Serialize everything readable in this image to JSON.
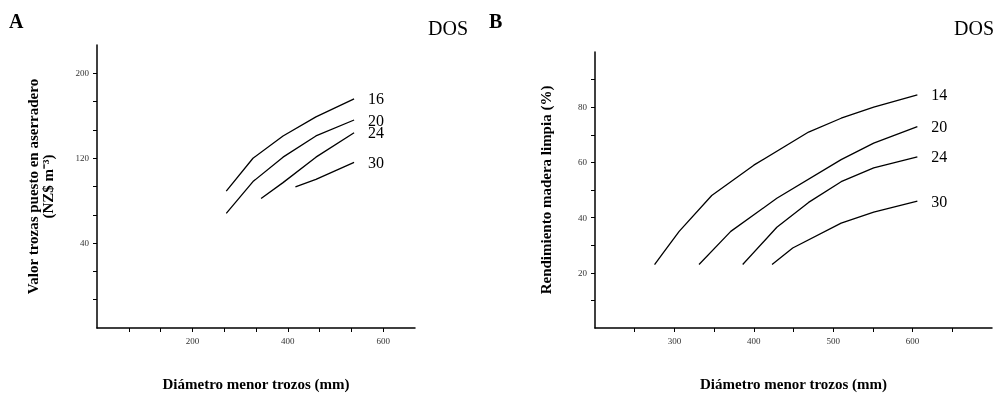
{
  "chart_data": [
    {
      "type": "line",
      "title": "A",
      "legend_title": "DOS",
      "xlabel": "Diámetro menor trozos (mm)",
      "ylabel": "Valor trozas puesto en aserradero\n(NZ$ m⁻³)",
      "marker": "none",
      "line_style": "solid",
      "grid": false,
      "xlim": [
        0,
        666.7
      ],
      "xticks": [
        {
          "value": 66.7,
          "label": null
        },
        {
          "value": 133.3,
          "label": null
        },
        200,
        {
          "value": 266.7,
          "label": null
        },
        {
          "value": 333.3,
          "label": null
        },
        400,
        {
          "value": 466.7,
          "label": null
        },
        {
          "value": 533.3,
          "label": null
        },
        600
      ],
      "ylim": [
        -40,
        226.7
      ],
      "yticks": [
        {
          "value": -13.3,
          "label": null
        },
        {
          "value": 13.3,
          "label": null
        },
        40,
        {
          "value": 66.7,
          "label": null
        },
        {
          "value": 93.3,
          "label": null
        },
        120,
        {
          "value": 146.7,
          "label": null
        },
        {
          "value": 173.3,
          "label": null
        },
        200
      ],
      "series": [
        {
          "name": "16",
          "color": "#000000",
          "x": [
            271,
            327,
            390,
            459,
            539
          ],
          "values": [
            89,
            120,
            141,
            159,
            176
          ]
        },
        {
          "name": "20",
          "color": "#000000",
          "x": [
            271,
            327,
            390,
            459,
            539
          ],
          "values": [
            68,
            98,
            121,
            141,
            156
          ]
        },
        {
          "name": "24",
          "color": "#000000",
          "x": [
            344,
            390,
            459,
            539
          ],
          "values": [
            82,
            97,
            121,
            144
          ]
        },
        {
          "name": "30",
          "color": "#000000",
          "x": [
            416,
            459,
            539
          ],
          "values": [
            93,
            100,
            116
          ]
        }
      ]
    },
    {
      "type": "line",
      "title": "B",
      "legend_title": "DOS",
      "xlabel": "Diámetro menor trozos (mm)",
      "ylabel": "Rendimiento madera limpia (%)",
      "marker": "none",
      "line_style": "solid",
      "grid": false,
      "xlim": [
        200,
        700
      ],
      "xticks": [
        {
          "value": 250,
          "label": null
        },
        300,
        {
          "value": 350,
          "label": null
        },
        400,
        {
          "value": 450,
          "label": null
        },
        500,
        {
          "value": 550,
          "label": null
        },
        600,
        {
          "value": 650,
          "label": null
        }
      ],
      "ylim": [
        0,
        100
      ],
      "yticks": [
        {
          "value": 10,
          "label": null
        },
        20,
        {
          "value": 30,
          "label": null
        },
        40,
        {
          "value": 50,
          "label": null
        },
        60,
        {
          "value": 70,
          "label": null
        },
        80,
        {
          "value": 90,
          "label": null
        }
      ],
      "series": [
        {
          "name": "14",
          "color": "#000000",
          "x": [
            275,
            306,
            347,
            400,
            469,
            510,
            551,
            606
          ],
          "values": [
            23,
            35,
            48,
            59,
            71,
            76,
            80,
            84.5
          ]
        },
        {
          "name": "20",
          "color": "#000000",
          "x": [
            331,
            371,
            429,
            510,
            551,
            606
          ],
          "values": [
            23,
            35,
            47,
            61,
            67,
            73
          ]
        },
        {
          "name": "24",
          "color": "#000000",
          "x": [
            386,
            429,
            469,
            510,
            551,
            606
          ],
          "values": [
            23,
            36.5,
            45.5,
            53,
            58,
            62
          ]
        },
        {
          "name": "30",
          "color": "#000000",
          "x": [
            423,
            449,
            510,
            551,
            606
          ],
          "values": [
            23,
            29,
            38,
            42,
            46
          ]
        }
      ]
    }
  ]
}
